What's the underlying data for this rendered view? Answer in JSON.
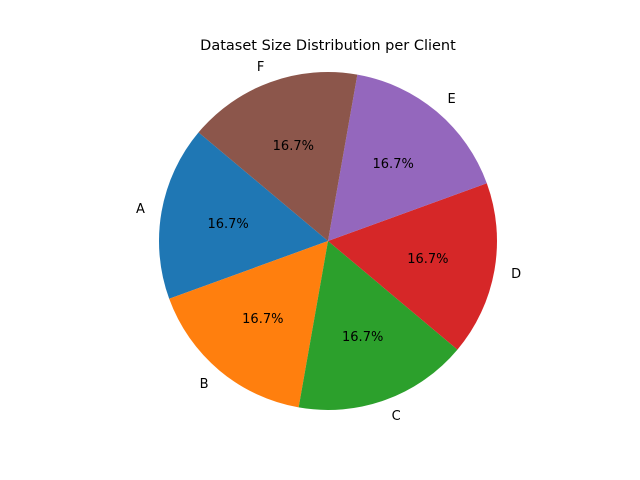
{
  "chart_data": {
    "type": "pie",
    "title": "Dataset Size Distribution per Client",
    "categories": [
      "A",
      "B",
      "C",
      "D",
      "E",
      "F"
    ],
    "values": [
      1,
      1,
      1,
      1,
      1,
      1
    ],
    "percent_labels": [
      "16.7%",
      "16.7%",
      "16.7%",
      "16.7%",
      "16.7%",
      "16.7%"
    ],
    "colors": [
      "#1f77b4",
      "#ff7f0e",
      "#2ca02c",
      "#d62728",
      "#9467bd",
      "#8c564b"
    ],
    "start_angle_deg": 140,
    "direction": "counterclockwise",
    "legend": "none"
  }
}
